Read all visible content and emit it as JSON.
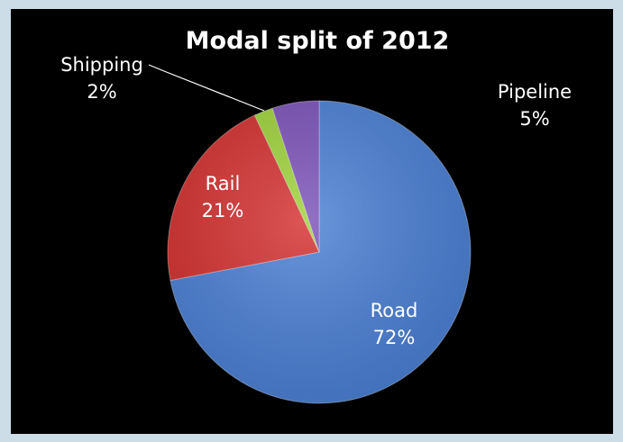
{
  "chart_data": {
    "type": "pie",
    "title": "Modal split of 2012",
    "categories": [
      "Road",
      "Rail",
      "Shipping",
      "Pipeline"
    ],
    "values": [
      72,
      21,
      2,
      5
    ],
    "unit": "%",
    "start_angle_deg": 0,
    "direction": "clockwise",
    "legend": "none",
    "labels": [
      {
        "name": "Road",
        "value_text": "72%"
      },
      {
        "name": "Rail",
        "value_text": "21%"
      },
      {
        "name": "Shipping",
        "value_text": "2%"
      },
      {
        "name": "Pipeline",
        "value_text": "5%"
      }
    ],
    "colors": {
      "Road": "#4a7fd4",
      "Rail": "#d42f2f",
      "Shipping": "#9ed23a",
      "Pipeline": "#7b52b8",
      "background": "#000000",
      "frame": "#ccdde8"
    }
  }
}
